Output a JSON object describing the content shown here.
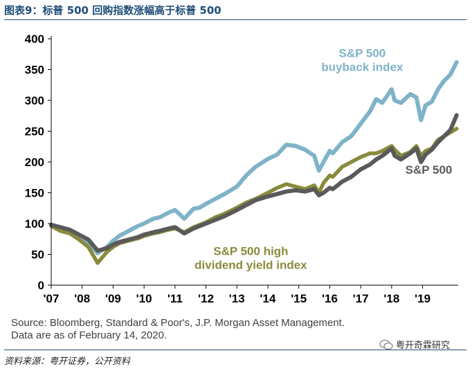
{
  "figure": {
    "title": "图表9：标普 500 回购指数涨幅高于标普 500",
    "note_line1": "Source: Bloomberg, Standard & Poor's, J.P. Morgan Asset Management.",
    "note_line2": "Data are as of February 14, 2020.",
    "source_cn": "资料来源：粤开证券，公开资料",
    "watermark": "粤开奇霖研究"
  },
  "chart_data": {
    "type": "line",
    "title": "",
    "xlabel": "",
    "ylabel": "",
    "ylim": [
      0,
      400
    ],
    "yticks": [
      0,
      50,
      100,
      150,
      200,
      250,
      300,
      350,
      400
    ],
    "xlim": [
      2007.0,
      2020.15
    ],
    "xticks": [
      {
        "x": 2007,
        "label": "'07"
      },
      {
        "x": 2008,
        "label": "'08"
      },
      {
        "x": 2009,
        "label": "'09"
      },
      {
        "x": 2010,
        "label": "'10"
      },
      {
        "x": 2011,
        "label": "'11"
      },
      {
        "x": 2012,
        "label": "'12"
      },
      {
        "x": 2013,
        "label": "'13"
      },
      {
        "x": 2014,
        "label": "'14"
      },
      {
        "x": 2015,
        "label": "'15"
      },
      {
        "x": 2016,
        "label": "'16"
      },
      {
        "x": 2017,
        "label": "'17"
      },
      {
        "x": 2018,
        "label": "'18"
      },
      {
        "x": 2019,
        "label": "'19"
      }
    ],
    "grid": false,
    "series": [
      {
        "name": "S&P 500 buyback index",
        "label_lines": [
          "S&P 500",
          "buyback index"
        ],
        "color": "#7fb3c8",
        "x": [
          2007.0,
          2007.3,
          2007.6,
          2007.9,
          2008.2,
          2008.5,
          2008.8,
          2009.0,
          2009.2,
          2009.5,
          2009.8,
          2010.0,
          2010.3,
          2010.5,
          2010.8,
          2011.0,
          2011.3,
          2011.6,
          2011.8,
          2012.0,
          2012.3,
          2012.6,
          2013.0,
          2013.3,
          2013.6,
          2014.0,
          2014.3,
          2014.6,
          2014.9,
          2015.2,
          2015.5,
          2015.65,
          2015.8,
          2016.0,
          2016.1,
          2016.4,
          2016.7,
          2017.0,
          2017.3,
          2017.5,
          2017.7,
          2018.0,
          2018.1,
          2018.3,
          2018.6,
          2018.8,
          2018.95,
          2019.1,
          2019.3,
          2019.5,
          2019.7,
          2019.9,
          2020.1
        ],
        "y": [
          98,
          92,
          88,
          78,
          70,
          52,
          62,
          72,
          80,
          88,
          96,
          100,
          108,
          110,
          118,
          122,
          108,
          124,
          126,
          132,
          140,
          148,
          160,
          178,
          192,
          205,
          212,
          228,
          226,
          220,
          210,
          186,
          200,
          218,
          214,
          232,
          242,
          262,
          282,
          302,
          296,
          318,
          300,
          296,
          310,
          305,
          268,
          292,
          298,
          318,
          332,
          342,
          362
        ]
      },
      {
        "name": "S&P 500",
        "label_lines": [
          "S&P 500"
        ],
        "color": "#5a5a5a",
        "x": [
          2007.0,
          2007.3,
          2007.6,
          2007.9,
          2008.2,
          2008.5,
          2008.8,
          2009.0,
          2009.2,
          2009.5,
          2009.8,
          2010.0,
          2010.3,
          2010.5,
          2010.8,
          2011.0,
          2011.3,
          2011.6,
          2011.8,
          2012.0,
          2012.3,
          2012.6,
          2013.0,
          2013.3,
          2013.6,
          2014.0,
          2014.3,
          2014.6,
          2014.9,
          2015.2,
          2015.5,
          2015.65,
          2015.8,
          2016.0,
          2016.1,
          2016.4,
          2016.7,
          2017.0,
          2017.3,
          2017.5,
          2017.7,
          2018.0,
          2018.1,
          2018.3,
          2018.6,
          2018.8,
          2018.95,
          2019.1,
          2019.3,
          2019.5,
          2019.7,
          2019.9,
          2020.1
        ],
        "y": [
          98,
          94,
          90,
          82,
          74,
          56,
          60,
          66,
          70,
          74,
          78,
          82,
          86,
          88,
          92,
          94,
          84,
          92,
          96,
          100,
          106,
          112,
          122,
          130,
          138,
          144,
          148,
          152,
          154,
          152,
          156,
          146,
          150,
          158,
          156,
          168,
          176,
          188,
          196,
          204,
          210,
          222,
          210,
          204,
          214,
          222,
          200,
          212,
          220,
          232,
          242,
          252,
          276
        ]
      },
      {
        "name": "S&P 500 high dividend yield index",
        "label_lines": [
          "S&P 500 high",
          "dividend yield index"
        ],
        "color": "#8a8a3c",
        "x": [
          2007.0,
          2007.3,
          2007.6,
          2007.9,
          2008.2,
          2008.5,
          2008.8,
          2009.0,
          2009.2,
          2009.5,
          2009.8,
          2010.0,
          2010.3,
          2010.5,
          2010.8,
          2011.0,
          2011.3,
          2011.6,
          2011.8,
          2012.0,
          2012.3,
          2012.6,
          2013.0,
          2013.3,
          2013.6,
          2014.0,
          2014.3,
          2014.6,
          2014.9,
          2015.2,
          2015.5,
          2015.65,
          2015.8,
          2016.0,
          2016.1,
          2016.4,
          2016.7,
          2017.0,
          2017.3,
          2017.5,
          2017.7,
          2018.0,
          2018.1,
          2018.3,
          2018.6,
          2018.8,
          2018.95,
          2019.1,
          2019.3,
          2019.5,
          2019.7,
          2019.9,
          2020.1
        ],
        "y": [
          96,
          88,
          84,
          74,
          62,
          36,
          54,
          62,
          68,
          72,
          76,
          80,
          84,
          86,
          90,
          92,
          86,
          94,
          98,
          102,
          110,
          116,
          126,
          134,
          140,
          150,
          158,
          164,
          160,
          156,
          162,
          150,
          166,
          178,
          176,
          192,
          200,
          208,
          214,
          214,
          218,
          226,
          220,
          210,
          216,
          226,
          210,
          218,
          222,
          236,
          242,
          248,
          254
        ]
      }
    ]
  }
}
